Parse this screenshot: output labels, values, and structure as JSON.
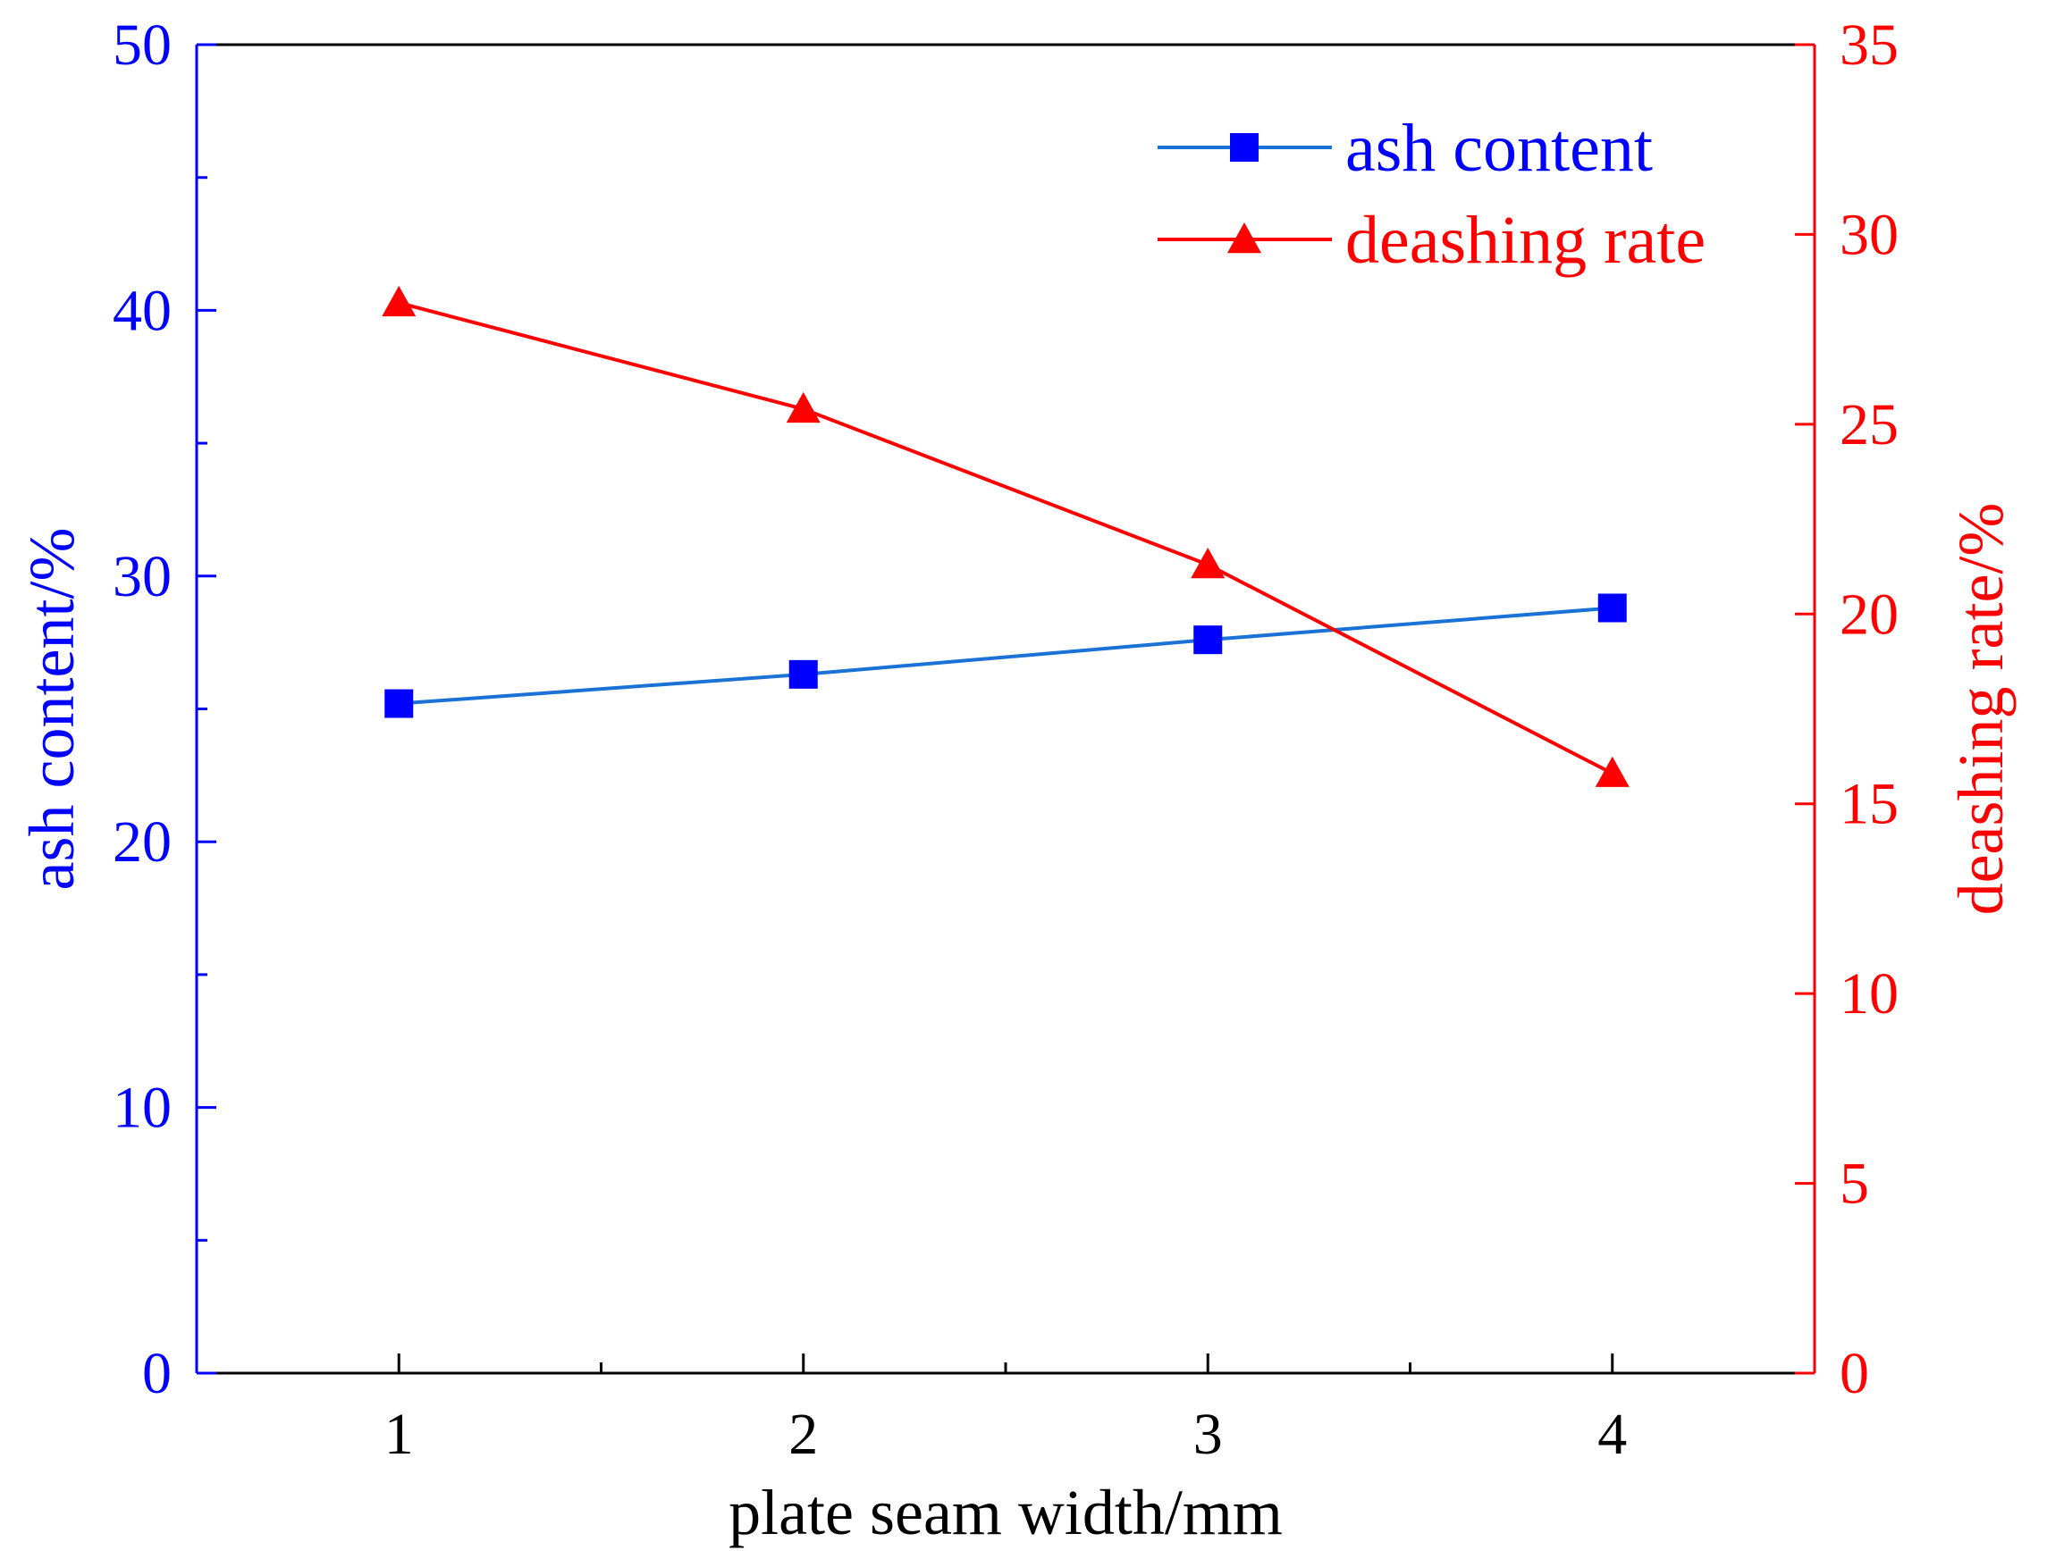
{
  "chart_data": {
    "type": "line",
    "xlabel": "plate seam width/mm",
    "x": [
      1,
      2,
      3,
      4
    ],
    "x_ticks": [
      "1",
      "2",
      "3",
      "4"
    ],
    "xlim": [
      0.5,
      4.5
    ],
    "y_left": {
      "label": "ash content/%",
      "lim": [
        0,
        50
      ],
      "ticks": [
        "0",
        "10",
        "20",
        "30",
        "40",
        "50"
      ],
      "color": "#0000ff"
    },
    "y_right": {
      "label": "deashing rate/%",
      "lim": [
        0,
        35
      ],
      "ticks": [
        "0",
        "5",
        "10",
        "15",
        "20",
        "25",
        "30",
        "35"
      ],
      "color": "#ff0000"
    },
    "series": [
      {
        "name": "ash content",
        "axis": "left",
        "values": [
          25.2,
          26.3,
          27.6,
          28.8
        ],
        "line_color": "#1a72d6",
        "marker": "square",
        "marker_color": "#0000ff"
      },
      {
        "name": "deashing rate",
        "axis": "right",
        "values": [
          28.2,
          25.4,
          21.3,
          15.8
        ],
        "line_color": "#ff0000",
        "marker": "triangle",
        "marker_color": "#ff0000"
      }
    ],
    "legend_position": "top-right",
    "grid": false
  }
}
